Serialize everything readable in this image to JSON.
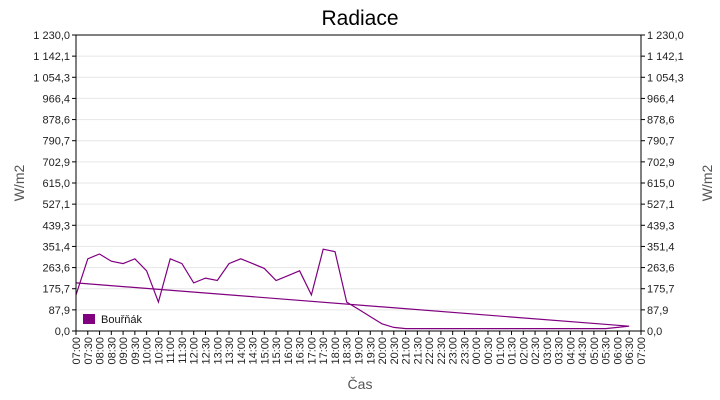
{
  "chart_data": {
    "type": "line",
    "title": "Radiace",
    "xlabel": "Čas",
    "ylabel": "W/m2",
    "ylabel_right": "W/m2",
    "ylim": [
      0,
      1230
    ],
    "y_ticks": [
      "0,0",
      "87,9",
      "175,7",
      "263,6",
      "351,4",
      "439,3",
      "527,1",
      "615,0",
      "702,9",
      "790,7",
      "878,6",
      "966,4",
      "1 054,3",
      "1 142,1",
      "1 230,0"
    ],
    "x_ticks": [
      "07:00",
      "07:30",
      "08:00",
      "08:30",
      "09:00",
      "09:30",
      "10:00",
      "10:30",
      "11:00",
      "11:30",
      "12:00",
      "12:30",
      "13:00",
      "13:30",
      "14:00",
      "14:30",
      "15:00",
      "15:30",
      "16:00",
      "16:30",
      "17:00",
      "17:30",
      "18:00",
      "18:30",
      "19:00",
      "19:30",
      "20:00",
      "20:30",
      "21:00",
      "21:30",
      "22:00",
      "22:30",
      "23:00",
      "23:30",
      "00:00",
      "00:30",
      "01:00",
      "01:30",
      "02:00",
      "02:30",
      "03:00",
      "03:30",
      "04:00",
      "04:30",
      "05:00",
      "05:30",
      "06:00",
      "06:30",
      "07:00"
    ],
    "grid": true,
    "legend": "bottom-left",
    "series": [
      {
        "name": "Bouřňák",
        "color": "#800080",
        "x": [
          "07:00",
          "07:30",
          "08:00",
          "08:30",
          "09:00",
          "09:30",
          "10:00",
          "10:30",
          "11:00",
          "11:30",
          "12:00",
          "12:30",
          "13:00",
          "13:30",
          "14:00",
          "14:30",
          "15:00",
          "15:30",
          "16:00",
          "16:30",
          "17:00",
          "17:30",
          "18:00",
          "18:30",
          "19:00",
          "19:30",
          "20:00",
          "20:30",
          "21:00",
          "21:30",
          "22:00",
          "22:30",
          "23:00",
          "23:30",
          "00:00",
          "00:30",
          "01:00",
          "01:30",
          "02:00",
          "02:30",
          "03:00",
          "03:30",
          "04:00",
          "04:30",
          "05:00",
          "05:30",
          "06:00",
          "06:30",
          "07:00"
        ],
        "values": [
          150,
          300,
          320,
          290,
          280,
          300,
          250,
          120,
          300,
          280,
          200,
          220,
          210,
          280,
          300,
          280,
          260,
          210,
          230,
          250,
          150,
          340,
          330,
          120,
          90,
          60,
          30,
          15,
          10,
          10,
          10,
          10,
          10,
          10,
          10,
          10,
          10,
          10,
          10,
          10,
          10,
          10,
          10,
          10,
          10,
          10,
          15,
          20,
          200
        ]
      }
    ]
  }
}
